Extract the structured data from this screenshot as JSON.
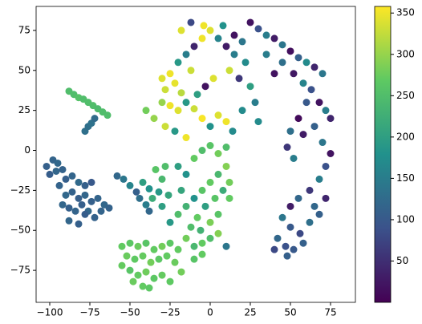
{
  "chart_data": {
    "type": "scatter",
    "colormap": "viridis",
    "xlim": [
      -108.5,
      90.5
    ],
    "ylim": [
      -95,
      90
    ],
    "clim": [
      0,
      358
    ],
    "xticks": [
      {
        "value": -100,
        "label": "−100"
      },
      {
        "value": -75,
        "label": "−75"
      },
      {
        "value": -50,
        "label": "−50"
      },
      {
        "value": -25,
        "label": "−25"
      },
      0,
      25,
      50,
      75
    ],
    "yticks": [
      {
        "value": -75,
        "label": "−75"
      },
      {
        "value": -50,
        "label": "−50"
      },
      {
        "value": -25,
        "label": "−25"
      },
      0,
      25,
      50,
      75
    ],
    "cticks": [
      50,
      100,
      150,
      200,
      250,
      300,
      350
    ],
    "x": [
      -88,
      -85,
      -82,
      -79,
      -76,
      -73,
      -70,
      -67,
      -64,
      -78,
      -76,
      -74,
      -72,
      -102,
      -98,
      -95,
      -100,
      -96,
      -92,
      -90,
      -86,
      -82,
      -78,
      -74,
      -94,
      -90,
      -86,
      -82,
      -78,
      -74,
      -70,
      -66,
      -63,
      -92,
      -88,
      -84,
      -80,
      -76,
      -72,
      -88,
      -82,
      -78,
      -68,
      -58,
      -54,
      -50,
      -46,
      -42,
      -38,
      -44,
      -40,
      -36,
      -32,
      -30,
      -34,
      -28,
      -38,
      -30,
      -26,
      -55,
      -50,
      -45,
      -40,
      -35,
      -30,
      -25,
      -20,
      -52,
      -47,
      -42,
      -37,
      -32,
      -27,
      -22,
      -50,
      -45,
      -40,
      -35,
      -30,
      -25,
      -48,
      -42,
      -38,
      -55,
      -18,
      -20,
      -15,
      -10,
      -5,
      0,
      5,
      10,
      12,
      8,
      3,
      -3,
      -8,
      -12,
      -6,
      0,
      5,
      -15,
      -10,
      -5,
      0,
      5,
      -10,
      -5,
      10,
      -20,
      -15,
      -10,
      -5,
      0,
      5,
      10,
      12,
      -25,
      -18,
      -30,
      -25,
      -28,
      -22,
      -18,
      -30,
      -25,
      -20,
      -15,
      -10,
      -5,
      0,
      5,
      10,
      14,
      -8,
      -3,
      2,
      -12,
      -20,
      -15,
      -10,
      -5,
      0,
      5,
      10,
      15,
      -18,
      -12,
      -4,
      8,
      15,
      20,
      22,
      18,
      12,
      25,
      28,
      -28,
      -22,
      -15,
      -35,
      -40,
      20,
      30,
      25,
      30,
      35,
      40,
      45,
      50,
      55,
      60,
      65,
      70,
      45,
      52,
      58,
      63,
      68,
      72,
      75,
      60,
      55,
      50,
      48,
      52,
      58,
      65,
      70,
      75,
      72,
      68,
      62,
      55,
      50,
      45,
      50,
      56,
      62,
      68,
      72,
      42,
      47,
      52,
      58,
      40,
      48,
      65,
      35,
      40
    ],
    "values": [
      37,
      35,
      33,
      32,
      30,
      28,
      26,
      24,
      22,
      12,
      15,
      17,
      20,
      -10,
      -6,
      -8,
      -15,
      -13,
      -12,
      -18,
      -16,
      -20,
      -22,
      -20,
      -22,
      -28,
      -26,
      -30,
      -28,
      -32,
      -30,
      -34,
      -36,
      -34,
      -36,
      -38,
      -34,
      -38,
      -42,
      -44,
      -46,
      -40,
      -38,
      -16,
      -18,
      -22,
      -26,
      -20,
      -24,
      -30,
      -34,
      -30,
      -26,
      -18,
      -12,
      -10,
      -38,
      -35,
      -28,
      -60,
      -58,
      -60,
      -58,
      -62,
      -60,
      -58,
      -62,
      -66,
      -68,
      -66,
      -70,
      -68,
      -66,
      -70,
      -75,
      -78,
      -76,
      -80,
      -78,
      -82,
      -82,
      -85,
      -86,
      -72,
      -76,
      -40,
      -35,
      -30,
      -25,
      -20,
      -15,
      -10,
      -20,
      -25,
      -30,
      -35,
      -42,
      -48,
      -50,
      -45,
      -40,
      -55,
      -60,
      -58,
      -55,
      -52,
      -68,
      -65,
      -60,
      -10,
      -15,
      -5,
      0,
      3,
      -2,
      2,
      -30,
      -45,
      -25,
      45,
      48,
      38,
      42,
      36,
      30,
      28,
      25,
      30,
      26,
      20,
      15,
      22,
      18,
      12,
      35,
      40,
      45,
      50,
      55,
      60,
      65,
      70,
      75,
      70,
      65,
      60,
      75,
      80,
      78,
      78,
      72,
      68,
      55,
      45,
      50,
      40,
      30,
      15,
      12,
      8,
      20,
      25,
      25,
      18,
      80,
      76,
      72,
      70,
      66,
      62,
      58,
      55,
      52,
      48,
      55,
      48,
      42,
      38,
      30,
      25,
      20,
      30,
      20,
      12,
      2,
      -5,
      10,
      15,
      5,
      -2,
      -10,
      -18,
      -25,
      -30,
      -35,
      -42,
      -48,
      -52,
      -45,
      -40,
      -30,
      -55,
      -60,
      -62,
      -58,
      -62,
      -66,
      -35,
      60,
      48
    ],
    "color_values": [
      250,
      250,
      255,
      250,
      250,
      250,
      245,
      250,
      250,
      130,
      130,
      135,
      125,
      110,
      115,
      120,
      105,
      118,
      112,
      108,
      116,
      122,
      110,
      100,
      114,
      120,
      112,
      108,
      118,
      110,
      115,
      120,
      112,
      118,
      110,
      115,
      108,
      120,
      112,
      118,
      110,
      105,
      115,
      120,
      140,
      160,
      110,
      200,
      180,
      130,
      150,
      220,
      190,
      240,
      260,
      250,
      120,
      200,
      210,
      270,
      265,
      275,
      260,
      270,
      280,
      265,
      270,
      275,
      268,
      272,
      280,
      265,
      270,
      275,
      260,
      270,
      278,
      265,
      272,
      268,
      275,
      270,
      265,
      272,
      280,
      250,
      230,
      180,
      260,
      270,
      240,
      290,
      280,
      220,
      260,
      200,
      270,
      250,
      230,
      285,
      260,
      280,
      240,
      270,
      250,
      290,
      260,
      270,
      140,
      200,
      180,
      270,
      250,
      260,
      280,
      250,
      270,
      190,
      210,
      340,
      350,
      330,
      345,
      320,
      300,
      350,
      340,
      190,
      330,
      355,
      180,
      340,
      350,
      170,
      200,
      20,
      340,
      330,
      190,
      150,
      40,
      350,
      340,
      160,
      30,
      150,
      340,
      80,
      350,
      180,
      20,
      140,
      170,
      60,
      330,
      200,
      150,
      330,
      190,
      350,
      300,
      280,
      170,
      170,
      20,
      90,
      150,
      30,
      140,
      15,
      110,
      170,
      40,
      140,
      130,
      25,
      160,
      90,
      20,
      150,
      40,
      100,
      10,
      130,
      60,
      150,
      30,
      110,
      140,
      20,
      90,
      150,
      60,
      120,
      30,
      140,
      100,
      80,
      130,
      110,
      40,
      120,
      90,
      100,
      110,
      80,
      110,
      120,
      150,
      20
    ]
  }
}
